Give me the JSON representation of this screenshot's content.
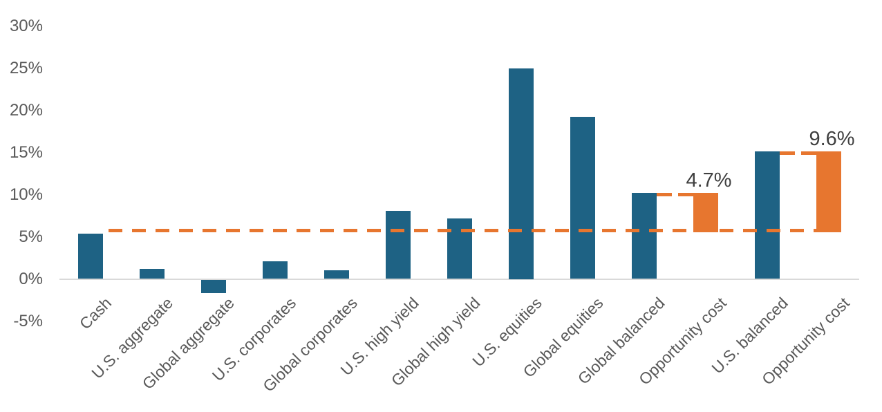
{
  "chart_data": {
    "type": "bar",
    "title": "",
    "xlabel": "",
    "ylabel": "",
    "ylim": [
      -5,
      30
    ],
    "grid": false,
    "legend": "none",
    "y_axis": {
      "tick_labels": [
        "30%",
        "25%",
        "20%",
        "15%",
        "10%",
        "5%",
        "0%",
        "-5%"
      ],
      "tick_values": [
        30,
        25,
        20,
        15,
        10,
        5,
        0,
        -5
      ]
    },
    "categories": [
      "Cash",
      "U.S. aggregate",
      "Global aggregate",
      "U.S. corporates",
      "Global corporates",
      "U.S. high yield",
      "Global high yield",
      "U.S. equities",
      "Global equities",
      "Global balanced",
      "Opportunity cost",
      "U.S. balanced",
      "Opportunity cost"
    ],
    "bars": [
      {
        "label": "Cash",
        "value": 5.4,
        "base": 0,
        "color": "teal",
        "data_label": ""
      },
      {
        "label": "U.S. aggregate",
        "value": 1.2,
        "base": 0,
        "color": "teal",
        "data_label": ""
      },
      {
        "label": "Global aggregate",
        "value": -1.6,
        "base": 0,
        "color": "teal",
        "data_label": ""
      },
      {
        "label": "U.S. corporates",
        "value": 2.1,
        "base": 0,
        "color": "teal",
        "data_label": ""
      },
      {
        "label": "Global corporates",
        "value": 1.0,
        "base": 0,
        "color": "teal",
        "data_label": ""
      },
      {
        "label": "U.S. high yield",
        "value": 8.1,
        "base": 0,
        "color": "teal",
        "data_label": ""
      },
      {
        "label": "Global high yield",
        "value": 7.2,
        "base": 0,
        "color": "teal",
        "data_label": ""
      },
      {
        "label": "U.S. equities",
        "value": 25.0,
        "base": 0,
        "color": "teal",
        "data_label": ""
      },
      {
        "label": "Global equities",
        "value": 19.2,
        "base": 0,
        "color": "teal",
        "data_label": ""
      },
      {
        "label": "Global balanced",
        "value": 10.2,
        "base": 0,
        "color": "teal",
        "data_label": ""
      },
      {
        "label": "Opportunity cost",
        "value": 10.2,
        "base": 5.5,
        "color": "orange",
        "data_label": "4.7%"
      },
      {
        "label": "U.S. balanced",
        "value": 15.1,
        "base": 0,
        "color": "teal",
        "data_label": ""
      },
      {
        "label": "Opportunity cost",
        "value": 15.1,
        "base": 5.5,
        "color": "orange",
        "data_label": "9.6%"
      }
    ],
    "dashed_line": {
      "level": 5.7,
      "start_after_bar": 0,
      "end_at_bar": 12
    },
    "connectors": [
      {
        "from_bar": 9,
        "to_bar": 10,
        "level": 10.2
      },
      {
        "from_bar": 11,
        "to_bar": 12,
        "level": 15.1
      }
    ],
    "colors": {
      "bar_teal": "#1e6284",
      "bar_orange": "#e7762f",
      "dashed_line": "#e7762f",
      "axis_text": "#595959",
      "data_label_text": "#3f3f3f",
      "axis_line": "#d9d9d9",
      "background": "#ffffff"
    }
  }
}
